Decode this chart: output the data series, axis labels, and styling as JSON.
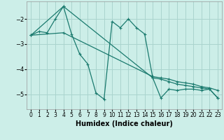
{
  "title": "",
  "xlabel": "Humidex (Indice chaleur)",
  "ylabel": "",
  "bg_color": "#cceee8",
  "grid_color": "#aad4ce",
  "line_color": "#1a7a6e",
  "xlim": [
    -0.5,
    23.5
  ],
  "ylim": [
    -5.6,
    -1.3
  ],
  "xticks": [
    0,
    1,
    2,
    3,
    4,
    5,
    6,
    7,
    8,
    9,
    10,
    11,
    12,
    13,
    14,
    15,
    16,
    17,
    18,
    19,
    20,
    21,
    22,
    23
  ],
  "yticks": [
    -5,
    -4,
    -3,
    -2
  ],
  "series1_x": [
    0,
    1,
    2,
    3,
    4,
    5,
    6,
    7,
    8,
    9,
    10,
    11,
    12,
    13,
    14,
    15,
    16,
    17,
    18,
    19,
    20,
    21,
    22,
    23
  ],
  "series1_y": [
    -2.65,
    -2.5,
    -2.55,
    -2.0,
    -1.5,
    -2.6,
    -3.4,
    -3.8,
    -4.95,
    -5.2,
    -2.1,
    -2.35,
    -2.0,
    -2.35,
    -2.6,
    -4.35,
    -5.15,
    -4.8,
    -4.85,
    -4.8,
    -4.8,
    -4.85,
    -4.8,
    -5.15
  ],
  "series2_x": [
    0,
    4,
    15,
    16,
    17,
    18,
    19,
    20,
    21,
    22,
    23
  ],
  "series2_y": [
    -2.65,
    -2.55,
    -4.3,
    -4.35,
    -4.4,
    -4.5,
    -4.55,
    -4.6,
    -4.7,
    -4.75,
    -4.85
  ],
  "series3_x": [
    0,
    4,
    15,
    16,
    17,
    18,
    19,
    20,
    21,
    22,
    23
  ],
  "series3_y": [
    -2.65,
    -1.5,
    -4.35,
    -4.4,
    -4.5,
    -4.6,
    -4.65,
    -4.7,
    -4.75,
    -4.8,
    -5.15
  ]
}
